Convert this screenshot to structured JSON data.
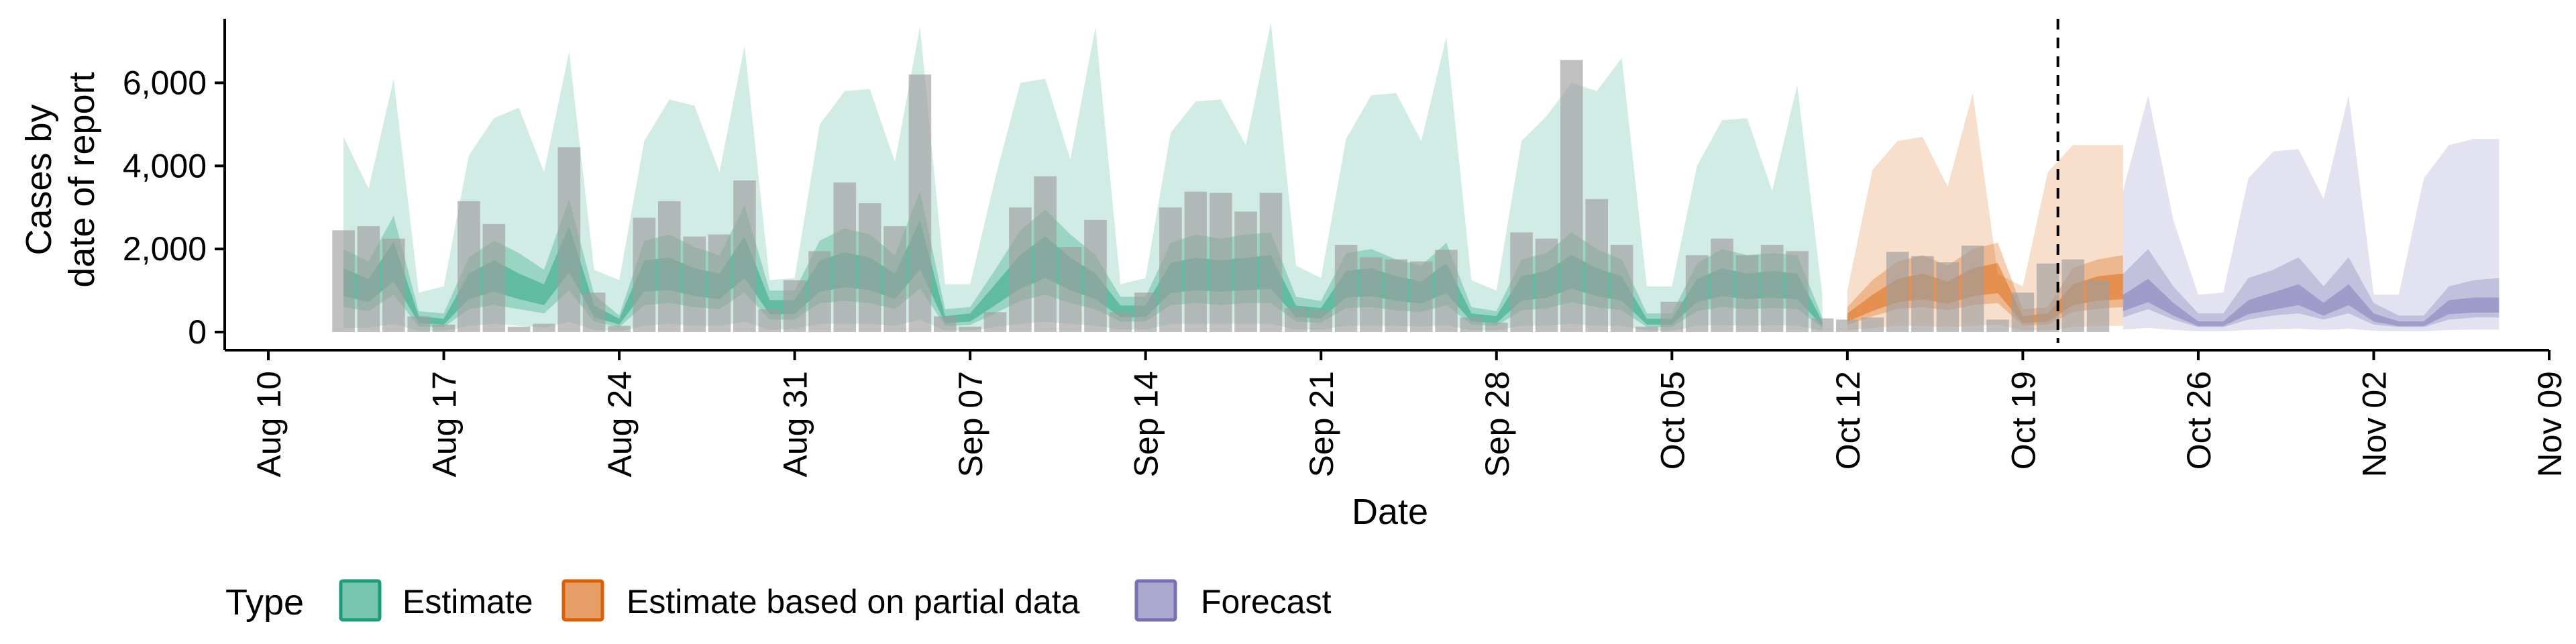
{
  "chart_data": {
    "type": "bar",
    "xlabel": "Date",
    "ylabel_lines": [
      "Cases by",
      "date of report"
    ],
    "x_ticks": [
      "Aug 10",
      "Aug 17",
      "Aug 24",
      "Aug 31",
      "Sep 07",
      "Sep 14",
      "Sep 21",
      "Sep 28",
      "Oct 05",
      "Oct 12",
      "Oct 19",
      "Oct 26",
      "Nov 02",
      "Nov 09"
    ],
    "y_ticks": [
      "0",
      "2,000",
      "4,000",
      "6,000"
    ],
    "ylim": [
      0,
      7800
    ],
    "xlim_days": [
      0,
      91
    ],
    "start_date": "2020-08-10",
    "forecast_line_day": 71.4,
    "grid": false,
    "legend_position": "bottom-left",
    "legend": {
      "title": "Type",
      "items": [
        {
          "label": "Estimate",
          "fill": "#1b9e77",
          "stroke": "#1b9e77"
        },
        {
          "label": "Estimate based on partial data",
          "fill": "#d95f02",
          "stroke": "#d95f02"
        },
        {
          "label": "Forecast",
          "fill": "#7570b3",
          "stroke": "#7570b3"
        }
      ]
    },
    "bar_color": "#9e9e9e",
    "reported_cases": [
      {
        "date": "2020-08-13",
        "value": 2450
      },
      {
        "date": "2020-08-14",
        "value": 2550
      },
      {
        "date": "2020-08-15",
        "value": 2250
      },
      {
        "date": "2020-08-16",
        "value": 380
      },
      {
        "date": "2020-08-17",
        "value": 180
      },
      {
        "date": "2020-08-18",
        "value": 3150
      },
      {
        "date": "2020-08-19",
        "value": 2600
      },
      {
        "date": "2020-08-20",
        "value": 130
      },
      {
        "date": "2020-08-21",
        "value": 200
      },
      {
        "date": "2020-08-22",
        "value": 4450
      },
      {
        "date": "2020-08-23",
        "value": 950
      },
      {
        "date": "2020-08-24",
        "value": 150
      },
      {
        "date": "2020-08-25",
        "value": 2750
      },
      {
        "date": "2020-08-26",
        "value": 3150
      },
      {
        "date": "2020-08-27",
        "value": 2300
      },
      {
        "date": "2020-08-28",
        "value": 2350
      },
      {
        "date": "2020-08-29",
        "value": 3650
      },
      {
        "date": "2020-08-30",
        "value": 550
      },
      {
        "date": "2020-08-31",
        "value": 1250
      },
      {
        "date": "2020-09-01",
        "value": 1950
      },
      {
        "date": "2020-09-02",
        "value": 3600
      },
      {
        "date": "2020-09-03",
        "value": 3100
      },
      {
        "date": "2020-09-04",
        "value": 2550
      },
      {
        "date": "2020-09-05",
        "value": 6200
      },
      {
        "date": "2020-09-06",
        "value": 380
      },
      {
        "date": "2020-09-07",
        "value": 130
      },
      {
        "date": "2020-09-08",
        "value": 480
      },
      {
        "date": "2020-09-09",
        "value": 3000
      },
      {
        "date": "2020-09-10",
        "value": 3750
      },
      {
        "date": "2020-09-11",
        "value": 2050
      },
      {
        "date": "2020-09-12",
        "value": 2700
      },
      {
        "date": "2020-09-13",
        "value": 480
      },
      {
        "date": "2020-09-14",
        "value": 950
      },
      {
        "date": "2020-09-15",
        "value": 3000
      },
      {
        "date": "2020-09-16",
        "value": 3380
      },
      {
        "date": "2020-09-17",
        "value": 3350
      },
      {
        "date": "2020-09-18",
        "value": 2900
      },
      {
        "date": "2020-09-19",
        "value": 3350
      },
      {
        "date": "2020-09-20",
        "value": 580
      },
      {
        "date": "2020-09-21",
        "value": 530
      },
      {
        "date": "2020-09-22",
        "value": 2100
      },
      {
        "date": "2020-09-23",
        "value": 1800
      },
      {
        "date": "2020-09-24",
        "value": 1750
      },
      {
        "date": "2020-09-25",
        "value": 1700
      },
      {
        "date": "2020-09-26",
        "value": 1980
      },
      {
        "date": "2020-09-27",
        "value": 350
      },
      {
        "date": "2020-09-28",
        "value": 230
      },
      {
        "date": "2020-09-29",
        "value": 2400
      },
      {
        "date": "2020-09-30",
        "value": 2250
      },
      {
        "date": "2020-10-01",
        "value": 6550
      },
      {
        "date": "2020-10-02",
        "value": 3200
      },
      {
        "date": "2020-10-03",
        "value": 2100
      },
      {
        "date": "2020-10-04",
        "value": 130
      },
      {
        "date": "2020-10-05",
        "value": 730
      },
      {
        "date": "2020-10-06",
        "value": 1850
      },
      {
        "date": "2020-10-07",
        "value": 2250
      },
      {
        "date": "2020-10-08",
        "value": 1850
      },
      {
        "date": "2020-10-09",
        "value": 2100
      },
      {
        "date": "2020-10-10",
        "value": 1950
      },
      {
        "date": "2020-10-11",
        "value": 330
      },
      {
        "date": "2020-10-12",
        "value": 300
      },
      {
        "date": "2020-10-13",
        "value": 350
      },
      {
        "date": "2020-10-14",
        "value": 1930
      },
      {
        "date": "2020-10-15",
        "value": 1830
      },
      {
        "date": "2020-10-16",
        "value": 1680
      },
      {
        "date": "2020-10-17",
        "value": 2080
      },
      {
        "date": "2020-10-18",
        "value": 300
      },
      {
        "date": "2020-10-19",
        "value": 950
      },
      {
        "date": "2020-10-20",
        "value": 1650
      },
      {
        "date": "2020-10-21",
        "value": 1750
      },
      {
        "date": "2020-10-22",
        "value": 1250
      }
    ],
    "series": [
      {
        "name": "Estimate",
        "start_date": "2020-08-13",
        "color": "#1b9e77",
        "median": [
          1200,
          1000,
          1700,
          300,
          250,
          1100,
          1350,
          1100,
          900,
          2000,
          500,
          250,
          1350,
          1400,
          1200,
          1100,
          1800,
          600,
          600,
          1350,
          1500,
          1400,
          1100,
          2100,
          300,
          350,
          900,
          1450,
          1800,
          1400,
          1100,
          500,
          500,
          1300,
          1400,
          1350,
          1400,
          1450,
          500,
          450,
          1150,
          1200,
          1050,
          950,
          1300,
          350,
          300,
          1050,
          1150,
          1450,
          1200,
          1050,
          250,
          250,
          1000,
          1200,
          1100,
          1150,
          1100,
          200
        ],
        "lower90": [
          100,
          100,
          200,
          20,
          20,
          150,
          200,
          150,
          100,
          250,
          50,
          20,
          150,
          200,
          150,
          150,
          250,
          50,
          80,
          200,
          200,
          200,
          150,
          300,
          30,
          40,
          120,
          200,
          250,
          200,
          150,
          60,
          60,
          200,
          200,
          200,
          200,
          200,
          60,
          60,
          150,
          150,
          150,
          130,
          170,
          40,
          40,
          150,
          150,
          200,
          150,
          150,
          30,
          30,
          150,
          170,
          150,
          170,
          150,
          30
        ],
        "upper90": [
          4700,
          3450,
          6100,
          950,
          1100,
          4250,
          5150,
          5400,
          3850,
          6750,
          1500,
          1250,
          4600,
          5600,
          5450,
          3850,
          6900,
          1250,
          1300,
          5000,
          5800,
          5850,
          4100,
          7350,
          1150,
          1150,
          3700,
          6000,
          6100,
          4150,
          7350,
          1150,
          1300,
          4800,
          5550,
          5600,
          4500,
          7450,
          1600,
          1300,
          4650,
          5700,
          5750,
          4600,
          7100,
          1250,
          1000,
          4600,
          5200,
          6000,
          5800,
          6600,
          1100,
          1100,
          4000,
          5100,
          5150,
          3400,
          5950,
          900
        ],
        "lower50": [
          600,
          500,
          900,
          130,
          120,
          550,
          650,
          550,
          450,
          1000,
          250,
          120,
          650,
          700,
          600,
          550,
          950,
          300,
          300,
          700,
          750,
          700,
          550,
          1050,
          150,
          170,
          450,
          750,
          900,
          700,
          550,
          250,
          250,
          650,
          700,
          650,
          700,
          700,
          250,
          220,
          580,
          600,
          520,
          480,
          650,
          180,
          150,
          520,
          570,
          720,
          600,
          520,
          120,
          120,
          500,
          600,
          550,
          580,
          550,
          100
        ],
        "upper50": [
          2000,
          1700,
          2800,
          500,
          450,
          1800,
          2200,
          1900,
          1500,
          3200,
          900,
          400,
          2200,
          2350,
          2050,
          1850,
          3050,
          1000,
          1000,
          2200,
          2500,
          2350,
          1850,
          3400,
          550,
          600,
          1500,
          2450,
          2950,
          2350,
          1850,
          850,
          850,
          2150,
          2350,
          2250,
          2350,
          2400,
          850,
          750,
          1900,
          2000,
          1750,
          1600,
          2150,
          600,
          500,
          1750,
          1900,
          2400,
          2000,
          1750,
          450,
          450,
          1650,
          2000,
          1850,
          1900,
          1850,
          350
        ]
      },
      {
        "name": "Estimate based on partial data",
        "start_date": "2020-10-12",
        "color": "#d95f02",
        "median": [
          350,
          700,
          1000,
          1100,
          950,
          1200,
          1300,
          300,
          350,
          900,
          1050,
          1100
        ],
        "lower90": [
          50,
          100,
          150,
          150,
          120,
          150,
          180,
          40,
          40,
          120,
          150,
          150
        ],
        "upper90": [
          1000,
          3900,
          4600,
          4700,
          3500,
          5750,
          1400,
          1100,
          3850,
          4500,
          4500,
          4500
        ],
        "lower50": [
          180,
          380,
          550,
          600,
          520,
          650,
          700,
          160,
          180,
          480,
          560,
          600
        ],
        "upper50": [
          600,
          1250,
          1700,
          1850,
          1600,
          2000,
          2150,
          550,
          600,
          1550,
          1750,
          1850
        ]
      },
      {
        "name": "Forecast",
        "start_date": "2020-10-23",
        "color": "#7570b3",
        "median": [
          700,
          1000,
          550,
          200,
          200,
          600,
          750,
          900,
          550,
          900,
          350,
          200,
          200,
          600,
          650,
          650
        ],
        "lower90": [
          60,
          100,
          50,
          20,
          20,
          50,
          70,
          80,
          50,
          80,
          30,
          20,
          20,
          50,
          60,
          60
        ],
        "upper90": [
          3400,
          5700,
          2700,
          900,
          950,
          3700,
          4350,
          4400,
          3200,
          5700,
          900,
          900,
          3700,
          4500,
          4650,
          4650
        ],
        "lower50": [
          350,
          550,
          300,
          120,
          120,
          300,
          400,
          450,
          300,
          450,
          180,
          120,
          120,
          300,
          350,
          350
        ],
        "upper50": [
          1400,
          2000,
          1100,
          450,
          450,
          1300,
          1500,
          1800,
          1100,
          1800,
          700,
          400,
          400,
          1100,
          1250,
          1300
        ]
      }
    ]
  }
}
